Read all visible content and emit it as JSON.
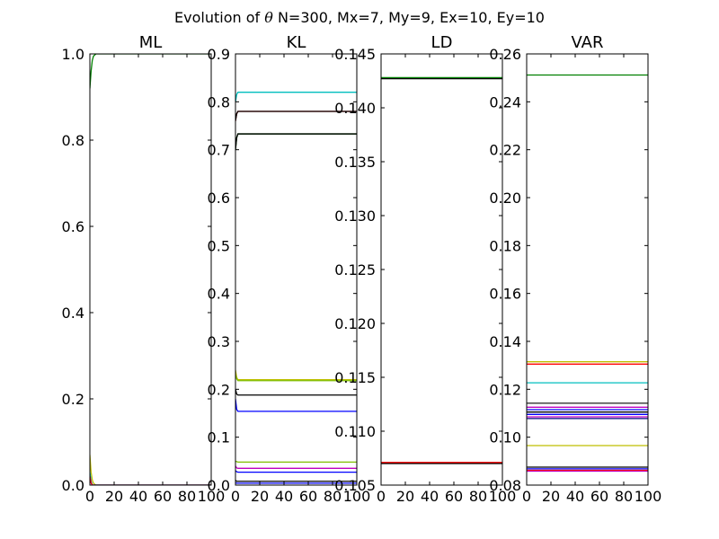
{
  "title": {
    "prefix": "Evolution of",
    "symbol": "θ",
    "params": "N=300, Mx=7, My=9, Ex=10, Ey=10"
  },
  "chart_data": [
    {
      "type": "line",
      "title": "ML",
      "xlim": [
        0,
        100
      ],
      "ylim": [
        0.0,
        1.0
      ],
      "xticks": [
        "0",
        "20",
        "40",
        "60",
        "80",
        "100"
      ],
      "yticks": [
        "0.0",
        "0.2",
        "0.4",
        "0.6",
        "0.8",
        "1.0"
      ],
      "series": [
        {
          "color": "#008000",
          "x": [
            0,
            1,
            2,
            3,
            5,
            100
          ],
          "y": [
            0.92,
            0.96,
            0.985,
            0.995,
            1.0,
            1.0
          ]
        },
        {
          "color": "#bfbf00",
          "x": [
            0,
            1,
            2,
            3,
            5,
            100
          ],
          "y": [
            0.07,
            0.03,
            0.012,
            0.004,
            0.0,
            0.0
          ]
        },
        {
          "color": "#00bfbf",
          "x": [
            0,
            1,
            2,
            100
          ],
          "y": [
            0.03,
            0.01,
            0.0,
            0.0
          ]
        },
        {
          "color": "#0000ff",
          "x": [
            0,
            1,
            2,
            100
          ],
          "y": [
            0.02,
            0.005,
            0.0,
            0.0
          ]
        },
        {
          "color": "#ff0000",
          "x": [
            0,
            1,
            2,
            100
          ],
          "y": [
            0.02,
            0.005,
            0.0,
            0.0
          ]
        }
      ]
    },
    {
      "type": "line",
      "title": "KL",
      "xlim": [
        0,
        100
      ],
      "ylim": [
        0.0,
        0.9
      ],
      "xticks": [
        "0",
        "20",
        "40",
        "60",
        "80",
        "100"
      ],
      "yticks": [
        "0.0",
        "0.1",
        "0.2",
        "0.3",
        "0.4",
        "0.5",
        "0.6",
        "0.7",
        "0.8",
        "0.9"
      ],
      "series": [
        {
          "color": "#00bfbf",
          "x": [
            0,
            1,
            2,
            100
          ],
          "y": [
            0.8,
            0.815,
            0.82,
            0.82
          ]
        },
        {
          "color": "#ff0000",
          "x": [
            0,
            1,
            2,
            100
          ],
          "y": [
            0.76,
            0.775,
            0.78,
            0.78
          ]
        },
        {
          "color": "#000000",
          "x": [
            0,
            1,
            2,
            100
          ],
          "y": [
            0.76,
            0.775,
            0.78,
            0.78
          ]
        },
        {
          "color": "#008000",
          "x": [
            0,
            1,
            2,
            100
          ],
          "y": [
            0.7,
            0.725,
            0.733,
            0.733
          ]
        },
        {
          "color": "#000000",
          "x": [
            0,
            1,
            2,
            100
          ],
          "y": [
            0.7,
            0.725,
            0.733,
            0.733
          ]
        },
        {
          "color": "#bfbf00",
          "x": [
            0,
            1,
            2,
            100
          ],
          "y": [
            0.24,
            0.225,
            0.22,
            0.22
          ]
        },
        {
          "color": "#7fbf00",
          "x": [
            0,
            1,
            2,
            100
          ],
          "y": [
            0.23,
            0.222,
            0.218,
            0.218
          ]
        },
        {
          "color": "#000000",
          "x": [
            0,
            1,
            2,
            100
          ],
          "y": [
            0.2,
            0.19,
            0.188,
            0.188
          ]
        },
        {
          "color": "#0000ff",
          "x": [
            0,
            1,
            2,
            100
          ],
          "y": [
            0.18,
            0.158,
            0.154,
            0.154
          ]
        },
        {
          "color": "#7fbf00",
          "x": [
            0,
            1,
            2,
            100
          ],
          "y": [
            0.05,
            0.049,
            0.048,
            0.048
          ]
        },
        {
          "color": "#bf00bf",
          "x": [
            0,
            1,
            2,
            100
          ],
          "y": [
            0.04,
            0.036,
            0.035,
            0.035
          ]
        },
        {
          "color": "#0000ff",
          "x": [
            0,
            1,
            2,
            100
          ],
          "y": [
            0.03,
            0.028,
            0.027,
            0.027
          ]
        },
        {
          "color": "#000000",
          "x": [
            0,
            1,
            2,
            100
          ],
          "y": [
            0.01,
            0.008,
            0.008,
            0.008
          ]
        },
        {
          "color": "#0000ff",
          "x": [
            0,
            1,
            2,
            100
          ],
          "y": [
            0.005,
            0.004,
            0.004,
            0.004
          ]
        }
      ]
    },
    {
      "type": "line",
      "title": "LD",
      "xlim": [
        0,
        100
      ],
      "ylim": [
        0.105,
        0.145
      ],
      "xticks": [
        "0",
        "20",
        "40",
        "60",
        "80",
        "100"
      ],
      "yticks": [
        "0.105",
        "0.110",
        "0.115",
        "0.120",
        "0.125",
        "0.130",
        "0.135",
        "0.140",
        "0.145"
      ],
      "series": [
        {
          "color": "#008000",
          "x": [
            0,
            100
          ],
          "y": [
            0.1428,
            0.1428
          ]
        },
        {
          "color": "#000000",
          "x": [
            0,
            100
          ],
          "y": [
            0.1427,
            0.1427
          ]
        },
        {
          "color": "#ff0000",
          "x": [
            0,
            100
          ],
          "y": [
            0.1071,
            0.1071
          ]
        },
        {
          "color": "#000000",
          "x": [
            0,
            100
          ],
          "y": [
            0.107,
            0.107
          ]
        }
      ]
    },
    {
      "type": "line",
      "title": "VAR",
      "xlim": [
        0,
        100
      ],
      "ylim": [
        0.08,
        0.26
      ],
      "xticks": [
        "0",
        "20",
        "40",
        "60",
        "80",
        "100"
      ],
      "yticks": [
        "0.08",
        "0.10",
        "0.12",
        "0.14",
        "0.16",
        "0.18",
        "0.20",
        "0.22",
        "0.24",
        "0.26"
      ],
      "series": [
        {
          "color": "#008000",
          "x": [
            0,
            100
          ],
          "y": [
            0.2512,
            0.2512
          ]
        },
        {
          "color": "#bfbf00",
          "x": [
            0,
            100
          ],
          "y": [
            0.1315,
            0.1315
          ]
        },
        {
          "color": "#ff0000",
          "x": [
            0,
            100
          ],
          "y": [
            0.1305,
            0.1305
          ]
        },
        {
          "color": "#00bfbf",
          "x": [
            0,
            100
          ],
          "y": [
            0.1227,
            0.1227
          ]
        },
        {
          "color": "#333333",
          "x": [
            0,
            100
          ],
          "y": [
            0.1142,
            0.1142
          ]
        },
        {
          "color": "#bf00bf",
          "x": [
            0,
            100
          ],
          "y": [
            0.1125,
            0.1125
          ]
        },
        {
          "color": "#0000ff",
          "x": [
            0,
            100
          ],
          "y": [
            0.1115,
            0.1115
          ]
        },
        {
          "color": "#000000",
          "x": [
            0,
            100
          ],
          "y": [
            0.1105,
            0.1105
          ]
        },
        {
          "color": "#0000ff",
          "x": [
            0,
            100
          ],
          "y": [
            0.1095,
            0.1095
          ]
        },
        {
          "color": "#bf00bf",
          "x": [
            0,
            100
          ],
          "y": [
            0.1085,
            0.1085
          ]
        },
        {
          "color": "#000080",
          "x": [
            0,
            100
          ],
          "y": [
            0.1078,
            0.1078
          ]
        },
        {
          "color": "#bfbf00",
          "x": [
            0,
            100
          ],
          "y": [
            0.0965,
            0.0965
          ]
        },
        {
          "color": "#000000",
          "x": [
            0,
            100
          ],
          "y": [
            0.0875,
            0.0875
          ]
        },
        {
          "color": "#0000ff",
          "x": [
            0,
            100
          ],
          "y": [
            0.0868,
            0.0868
          ]
        },
        {
          "color": "#ff0000",
          "x": [
            0,
            100
          ],
          "y": [
            0.0862,
            0.0862
          ]
        },
        {
          "color": "#bf00bf",
          "x": [
            0,
            100
          ],
          "y": [
            0.0858,
            0.0858
          ]
        }
      ]
    }
  ]
}
